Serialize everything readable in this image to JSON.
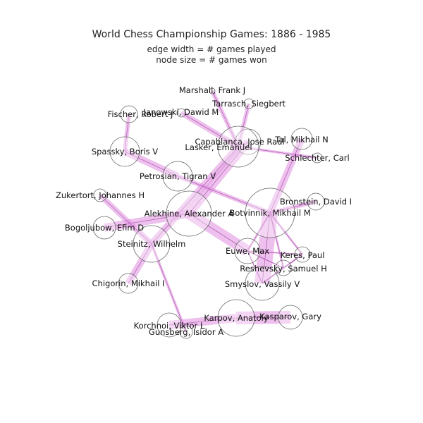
{
  "figure": {
    "title": "World Chess Championship Games: 1886 - 1985",
    "subtitle_lines": [
      "edge width = # games played",
      "node size = # games won"
    ]
  },
  "colors": {
    "edge_fill": "#e08ce0",
    "edge_line": "#8a2a8a",
    "node_stroke": "#666666",
    "label": "#111111"
  },
  "nodes": [
    {
      "id": "marshall",
      "label": "Marshall, Frank J"
    },
    {
      "id": "tarrasch",
      "label": "Tarrasch, Siegbert"
    },
    {
      "id": "fischer",
      "label": "Fischer, Robert J"
    },
    {
      "id": "janowski",
      "label": "Janowski, Dawid M"
    },
    {
      "id": "tal",
      "label": "Tal, Mikhail N"
    },
    {
      "id": "capablanca",
      "label": "Capablanca, Jose Raul"
    },
    {
      "id": "lasker",
      "label": "Lasker, Emanuel"
    },
    {
      "id": "schlechter",
      "label": "Schlechter, Carl"
    },
    {
      "id": "spassky",
      "label": "Spassky, Boris V"
    },
    {
      "id": "petrosian",
      "label": "Petrosian, Tigran V"
    },
    {
      "id": "zukertort",
      "label": "Zukertort, Johannes H"
    },
    {
      "id": "bronstein",
      "label": "Bronstein, David I"
    },
    {
      "id": "alekhine",
      "label": "Alekhine, Alexander A"
    },
    {
      "id": "botvinnik",
      "label": "Botvinnik, Mikhail M"
    },
    {
      "id": "bogoljubow",
      "label": "Bogoljubow, Efim D"
    },
    {
      "id": "steinitz",
      "label": "Steinitz, Wilhelm"
    },
    {
      "id": "euwe",
      "label": "Euwe, Max"
    },
    {
      "id": "keres",
      "label": "Keres, Paul"
    },
    {
      "id": "reshevsky",
      "label": "Reshevsky, Samuel H"
    },
    {
      "id": "chigorin",
      "label": "Chigorin, Mikhail I"
    },
    {
      "id": "smyslov",
      "label": "Smyslov, Vassily V"
    },
    {
      "id": "karpov",
      "label": "Karpov, Anatoly"
    },
    {
      "id": "kasparov",
      "label": "Kasparov, Gary"
    },
    {
      "id": "korchnoi",
      "label": "Korchnoi, Viktor L"
    },
    {
      "id": "gunsberg",
      "label": "Gunsberg, Isidor A"
    }
  ],
  "edges": [
    [
      "lasker",
      "marshall"
    ],
    [
      "lasker",
      "tarrasch"
    ],
    [
      "lasker",
      "janowski"
    ],
    [
      "lasker",
      "schlechter"
    ],
    [
      "lasker",
      "capablanca"
    ],
    [
      "lasker",
      "steinitz"
    ],
    [
      "capablanca",
      "alekhine"
    ],
    [
      "alekhine",
      "euwe"
    ],
    [
      "alekhine",
      "bogoljubow"
    ],
    [
      "botvinnik",
      "tal"
    ],
    [
      "botvinnik",
      "smyslov"
    ],
    [
      "botvinnik",
      "petrosian"
    ],
    [
      "botvinnik",
      "bronstein"
    ],
    [
      "botvinnik",
      "keres"
    ],
    [
      "botvinnik",
      "euwe"
    ],
    [
      "botvinnik",
      "reshevsky"
    ],
    [
      "petrosian",
      "spassky"
    ],
    [
      "spassky",
      "fischer"
    ],
    [
      "steinitz",
      "zukertort"
    ],
    [
      "steinitz",
      "chigorin"
    ],
    [
      "steinitz",
      "gunsberg"
    ],
    [
      "karpov",
      "korchnoi"
    ],
    [
      "karpov",
      "kasparov"
    ],
    [
      "smyslov",
      "keres"
    ],
    [
      "smyslov",
      "reshevsky"
    ],
    [
      "smyslov",
      "euwe"
    ],
    [
      "keres",
      "reshevsky"
    ],
    [
      "keres",
      "euwe"
    ],
    [
      "reshevsky",
      "euwe"
    ]
  ]
}
